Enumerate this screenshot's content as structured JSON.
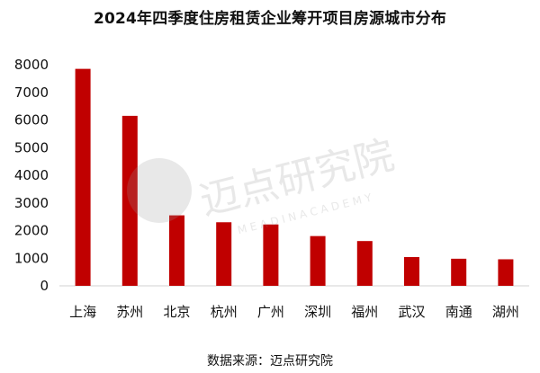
{
  "title": "2024年四季度住房租赁企业筹开项目房源城市分布",
  "source": "数据来源：迈点研究院",
  "watermark": {
    "name_cn": "迈点研究院",
    "name_en": "M E A D I N   A C A D E M Y",
    "color": "#bbbbbb"
  },
  "chart_data": {
    "type": "bar",
    "categories": [
      "上海",
      "苏州",
      "北京",
      "杭州",
      "广州",
      "深圳",
      "福州",
      "武汉",
      "南通",
      "湖州"
    ],
    "values": [
      7850,
      6150,
      2550,
      2300,
      2220,
      1800,
      1620,
      1040,
      980,
      960
    ],
    "ylim": [
      0,
      8000
    ],
    "yticks": [
      "0",
      "1000",
      "2000",
      "3000",
      "4000",
      "5000",
      "6000",
      "7000",
      "8000"
    ],
    "bar_color": "#c00000",
    "grid": false,
    "legend": "none"
  }
}
